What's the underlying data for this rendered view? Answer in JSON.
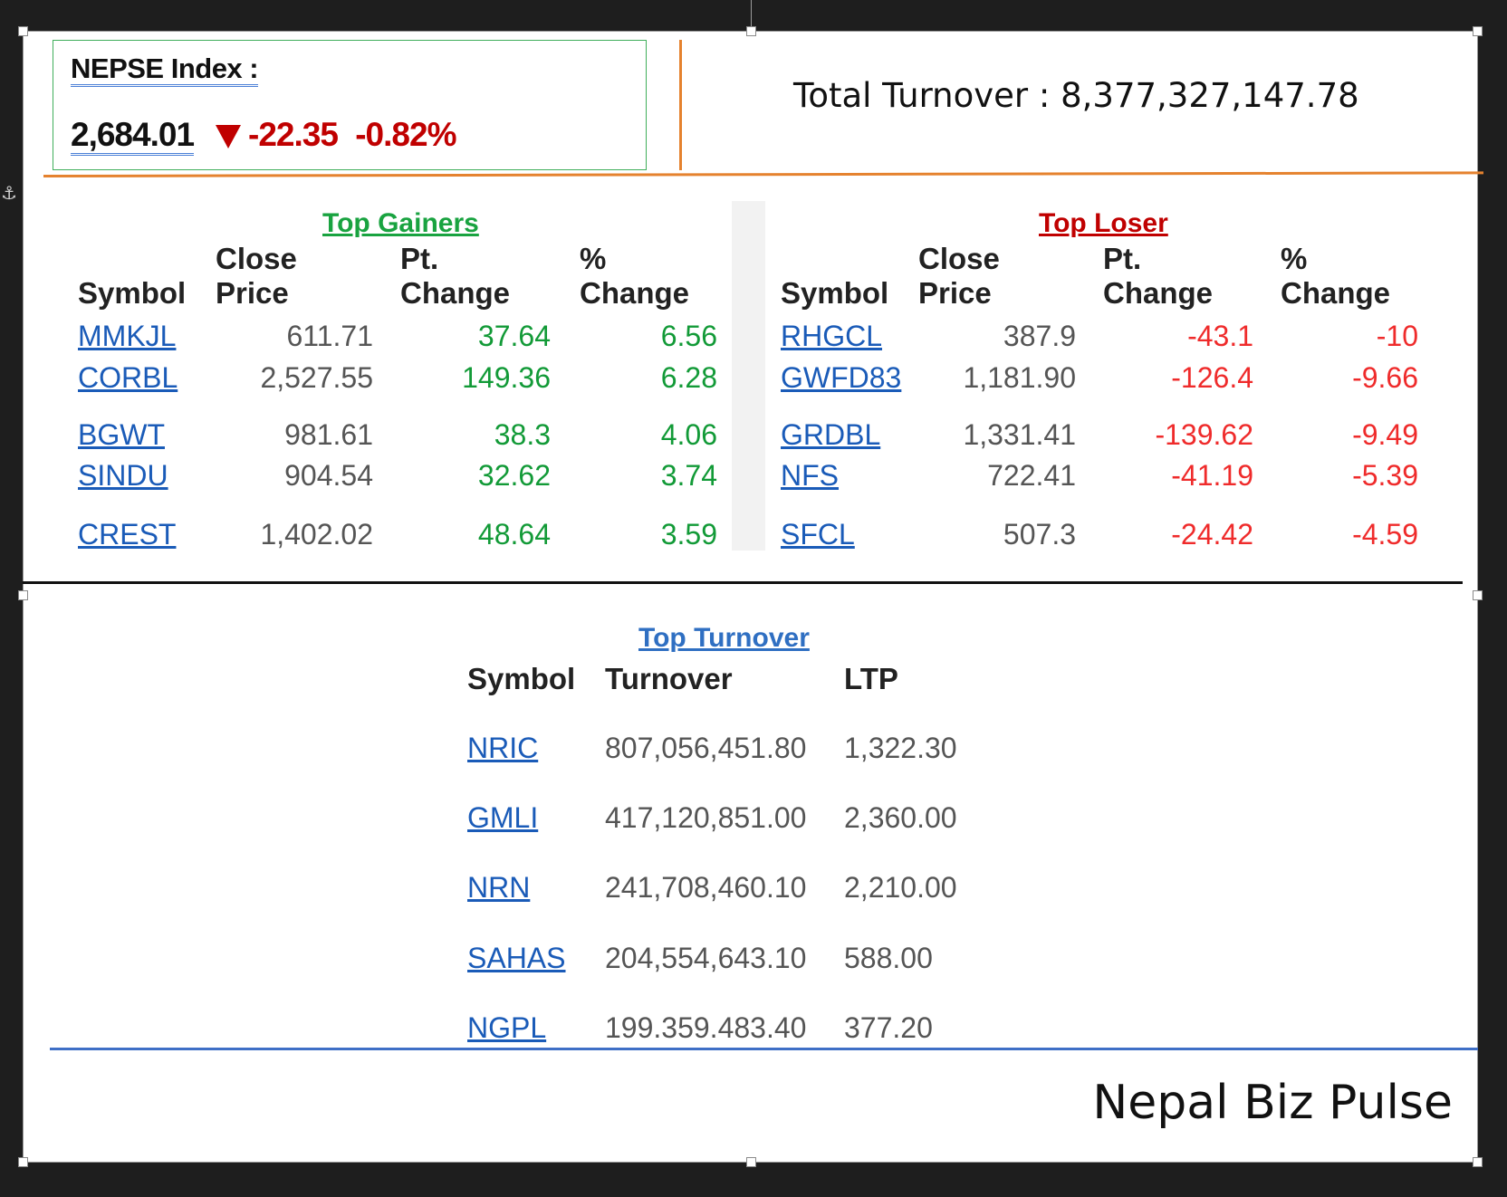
{
  "header": {
    "index_label": "NEPSE Index :",
    "index_value": "2,684.01",
    "index_point_change": "-22.35",
    "index_percent_change": "-0.82%",
    "total_turnover": "Total Turnover : 8,377,327,147.78"
  },
  "gainers": {
    "title": "Top Gainers",
    "columns": [
      "Symbol",
      "Close",
      "Price",
      "Pt.",
      "Change",
      "%",
      "Change"
    ],
    "rows": [
      {
        "symbol": "MMKJL",
        "close": "611.71",
        "pt": "37.64",
        "pct": "6.56"
      },
      {
        "symbol": "CORBL",
        "close": "2,527.55",
        "pt": "149.36",
        "pct": "6.28"
      },
      {
        "symbol": "BGWT",
        "close": "981.61",
        "pt": "38.3",
        "pct": "4.06"
      },
      {
        "symbol": "SINDU",
        "close": "904.54",
        "pt": "32.62",
        "pct": "3.74"
      },
      {
        "symbol": "CREST",
        "close": "1,402.02",
        "pt": "48.64",
        "pct": "3.59"
      }
    ]
  },
  "losers": {
    "title": "Top Loser",
    "columns": [
      "Symbol",
      "Close",
      "Price",
      "Pt.",
      "Change",
      "%",
      "Change"
    ],
    "rows": [
      {
        "symbol": "RHGCL",
        "close": "387.9",
        "pt": "-43.1",
        "pct": "-10"
      },
      {
        "symbol": "GWFD83",
        "close": "1,181.90",
        "pt": "-126.4",
        "pct": "-9.66"
      },
      {
        "symbol": "GRDBL",
        "close": "1,331.41",
        "pt": "-139.62",
        "pct": "-9.49"
      },
      {
        "symbol": "NFS",
        "close": "722.41",
        "pt": "-41.19",
        "pct": "-5.39"
      },
      {
        "symbol": "SFCL",
        "close": "507.3",
        "pt": "-24.42",
        "pct": "-4.59"
      }
    ]
  },
  "turnover": {
    "title": "Top Turnover",
    "columns": [
      "Symbol",
      "Turnover",
      "LTP"
    ],
    "rows": [
      {
        "symbol": "NRIC",
        "turnover": "807,056,451.80",
        "ltp": "1,322.30"
      },
      {
        "symbol": "GMLI",
        "turnover": "417,120,851.00",
        "ltp": "2,360.00"
      },
      {
        "symbol": "NRN",
        "turnover": "241,708,460.10",
        "ltp": "2,210.00"
      },
      {
        "symbol": "SAHAS",
        "turnover": "204,554,643.10",
        "ltp": "588.00"
      },
      {
        "symbol": "NGPL",
        "turnover": "199.359.483.40",
        "ltp": "377.20"
      }
    ]
  },
  "footer": {
    "brand": "Nepal Biz Pulse"
  },
  "colors": {
    "gain": "#129a37",
    "loss": "#ef2b2b",
    "link": "#1a5bb8",
    "accent_orange": "#e5822e",
    "accent_blue": "#3f6fc6"
  },
  "icons": {
    "anchor": "anchor-icon",
    "down": "down-triangle-icon"
  }
}
